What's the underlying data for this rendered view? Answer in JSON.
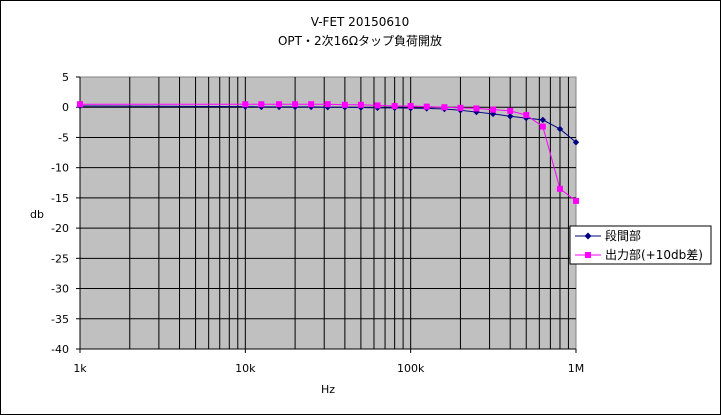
{
  "chart_data": {
    "type": "line",
    "title": "V-FET  20150610",
    "subtitle": "OPT・2次16Ωタップ負荷開放",
    "xlabel": "Hz",
    "ylabel": "db",
    "x_scale": "log",
    "xlim": [
      1000,
      1000000
    ],
    "ylim": [
      -40,
      5
    ],
    "x_ticks": [
      1000,
      10000,
      100000,
      1000000
    ],
    "x_tick_labels": [
      "1k",
      "10k",
      "100k",
      "1M"
    ],
    "y_ticks": [
      5,
      0,
      -5,
      -10,
      -15,
      -20,
      -25,
      -30,
      -35,
      -40
    ],
    "y_tick_labels": [
      "5",
      "0",
      "-5",
      "-10",
      "-15",
      "-20",
      "-25",
      "-30",
      "-35",
      "-40"
    ],
    "grid": true,
    "plot_background": "#c0c0c0",
    "legend_position": "right",
    "series": [
      {
        "name": "段間部",
        "color": "#000080",
        "marker": "diamond",
        "x": [
          1000,
          10000,
          12500,
          16000,
          20000,
          25000,
          31500,
          40000,
          50000,
          63000,
          80000,
          100000,
          125000,
          160000,
          200000,
          250000,
          315000,
          400000,
          500000,
          630000,
          800000,
          1000000
        ],
        "values": [
          0.2,
          0.1,
          0.05,
          0.05,
          0.05,
          0.05,
          0.0,
          0.0,
          -0.05,
          -0.1,
          -0.1,
          -0.15,
          -0.2,
          -0.3,
          -0.5,
          -0.8,
          -1.1,
          -1.5,
          -1.8,
          -2.1,
          -3.6,
          -5.8
        ]
      },
      {
        "name": "出力部(+10db差)",
        "color": "#ff00ff",
        "marker": "square",
        "x": [
          1000,
          10000,
          12500,
          16000,
          20000,
          25000,
          31500,
          40000,
          50000,
          63000,
          80000,
          100000,
          125000,
          160000,
          200000,
          250000,
          315000,
          400000,
          500000,
          630000,
          800000,
          1000000
        ],
        "values": [
          0.5,
          0.5,
          0.5,
          0.5,
          0.5,
          0.5,
          0.5,
          0.4,
          0.4,
          0.3,
          0.2,
          0.2,
          0.1,
          0.0,
          -0.1,
          -0.2,
          -0.4,
          -0.6,
          -1.3,
          -3.2,
          -13.5,
          -15.5
        ]
      }
    ]
  }
}
